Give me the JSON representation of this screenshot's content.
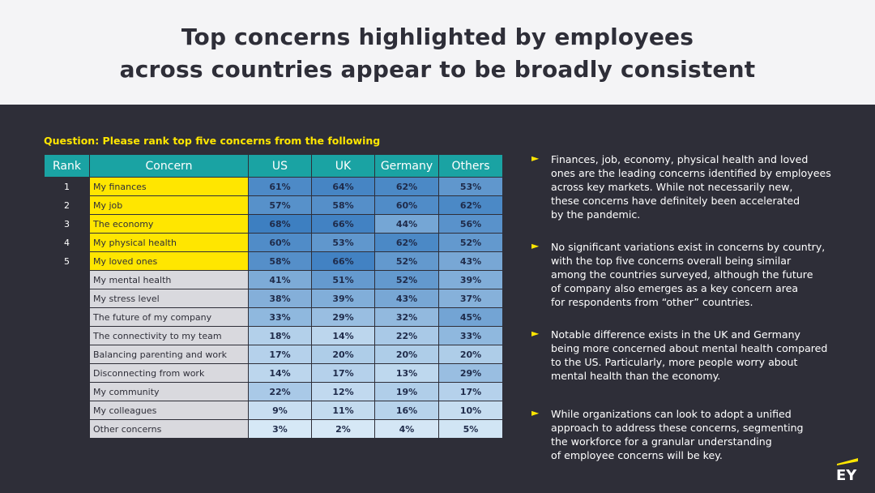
{
  "header": {
    "title_line1": "Top concerns highlighted by employees",
    "title_line2": "across countries appear to be broadly consistent"
  },
  "question": "Question: Please rank top five concerns from the following",
  "table": {
    "headers": [
      "Rank",
      "Concern",
      "US",
      "UK",
      "Germany",
      "Others"
    ],
    "rows": [
      {
        "rank": "1",
        "concern": "My finances",
        "values": [
          "61%",
          "64%",
          "62%",
          "53%"
        ]
      },
      {
        "rank": "2",
        "concern": "My job",
        "values": [
          "57%",
          "58%",
          "60%",
          "62%"
        ]
      },
      {
        "rank": "3",
        "concern": "The economy",
        "values": [
          "68%",
          "66%",
          "44%",
          "56%"
        ]
      },
      {
        "rank": "4",
        "concern": "My physical health",
        "values": [
          "60%",
          "53%",
          "62%",
          "52%"
        ]
      },
      {
        "rank": "5",
        "concern": "My loved ones",
        "values": [
          "58%",
          "66%",
          "52%",
          "43%"
        ]
      },
      {
        "rank": "",
        "concern": "My mental health",
        "values": [
          "41%",
          "51%",
          "52%",
          "39%"
        ]
      },
      {
        "rank": "",
        "concern": "My stress level",
        "values": [
          "38%",
          "39%",
          "43%",
          "37%"
        ]
      },
      {
        "rank": "",
        "concern": "The future of my company",
        "values": [
          "33%",
          "29%",
          "32%",
          "45%"
        ]
      },
      {
        "rank": "",
        "concern": "The connectivity to my team",
        "values": [
          "18%",
          "14%",
          "22%",
          "33%"
        ]
      },
      {
        "rank": "",
        "concern": "Balancing parenting and work",
        "values": [
          "17%",
          "20%",
          "20%",
          "20%"
        ]
      },
      {
        "rank": "",
        "concern": "Disconnecting from work",
        "values": [
          "14%",
          "17%",
          "13%",
          "29%"
        ]
      },
      {
        "rank": "",
        "concern": "My community",
        "values": [
          "22%",
          "12%",
          "19%",
          "17%"
        ]
      },
      {
        "rank": "",
        "concern": "My colleagues",
        "values": [
          "9%",
          "11%",
          "16%",
          "10%"
        ]
      },
      {
        "rank": "",
        "concern": "Other concerns",
        "values": [
          "3%",
          "2%",
          "4%",
          "5%"
        ]
      }
    ]
  },
  "bullets": [
    "Finances, job, economy, physical health and loved\nones are the leading concerns identified by employees\nacross key markets. While not necessarily new,\nthese concerns have definitely been accelerated\nby the pandemic.",
    "No significant variations exist in concerns by country,\nwith the top five concerns overall being similar\namong the countries surveyed, although the future\nof company also emerges as a key concern area\nfor respondents from “other” countries.",
    "Notable difference exists in the UK and Germany\nbeing more concerned about mental health compared\nto the US. Particularly, more people worry about\nmental health than the economy.",
    "While organizations can look to adopt a unified\napproach to address these concerns, segmenting\nthe workforce for a granular understanding\nof employee concerns will be key."
  ],
  "bullet_marker": "►",
  "logo_text": "EY",
  "colors": {
    "background": "#2e2e38",
    "header_bg": "#f4f4f6",
    "accent_yellow": "#ffe600",
    "table_header": "#1aa3a3",
    "heat_low": "#d6e8f6",
    "heat_high": "#3d7fc1"
  }
}
